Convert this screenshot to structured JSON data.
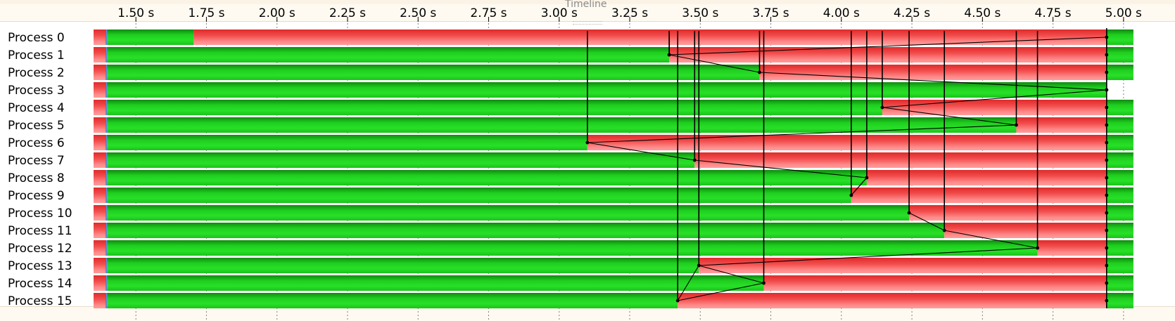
{
  "panel": {
    "title": "Timeline"
  },
  "chart_data": {
    "type": "timeline",
    "x_unit": "s",
    "xlim": [
      1.35,
      5.12
    ],
    "x_ticks": [
      {
        "value": 1.5,
        "label": "1.50 s"
      },
      {
        "value": 1.75,
        "label": "1.75 s"
      },
      {
        "value": 2.0,
        "label": "2.00 s"
      },
      {
        "value": 2.25,
        "label": "2.25 s"
      },
      {
        "value": 2.5,
        "label": "2.50 s"
      },
      {
        "value": 2.75,
        "label": "2.75 s"
      },
      {
        "value": 3.0,
        "label": "3.00 s"
      },
      {
        "value": 3.25,
        "label": "3.25 s"
      },
      {
        "value": 3.5,
        "label": "3.50 s"
      },
      {
        "value": 3.75,
        "label": "3.75 s"
      },
      {
        "value": 4.0,
        "label": "4.00 s"
      },
      {
        "value": 4.25,
        "label": "4.25 s"
      },
      {
        "value": 4.5,
        "label": "4.50 s"
      },
      {
        "value": 4.75,
        "label": "4.75 s"
      },
      {
        "value": 5.0,
        "label": "5.00 s"
      }
    ],
    "colors": {
      "compute": "#1fd21f",
      "wait": "#f06060",
      "arrow": "#000000",
      "grid": "#808080"
    },
    "track_start": 1.35,
    "init_end": 1.395,
    "processes": [
      {
        "label": "Process 0",
        "wait_start": 1.705,
        "end": 5.035
      },
      {
        "label": "Process 1",
        "wait_start": 3.39,
        "end": 5.035
      },
      {
        "label": "Process 2",
        "wait_start": 3.71,
        "end": 5.035
      },
      {
        "label": "Process 3",
        "wait_start": null,
        "end": 4.94
      },
      {
        "label": "Process 4",
        "wait_start": 4.145,
        "end": 5.035
      },
      {
        "label": "Process 5",
        "wait_start": 4.62,
        "end": 5.035
      },
      {
        "label": "Process 6",
        "wait_start": 3.1,
        "end": 5.035
      },
      {
        "label": "Process 7",
        "wait_start": 3.48,
        "end": 5.035
      },
      {
        "label": "Process 8",
        "wait_start": 4.09,
        "end": 5.035
      },
      {
        "label": "Process 9",
        "wait_start": 4.035,
        "end": 5.035
      },
      {
        "label": "Process 10",
        "wait_start": 4.24,
        "end": 5.035
      },
      {
        "label": "Process 11",
        "wait_start": 4.365,
        "end": 5.035
      },
      {
        "label": "Process 12",
        "wait_start": 4.695,
        "end": 5.035
      },
      {
        "label": "Process 13",
        "wait_start": 3.495,
        "end": 5.035
      },
      {
        "label": "Process 14",
        "wait_start": 3.725,
        "end": 5.035
      },
      {
        "label": "Process 15",
        "wait_start": 3.42,
        "end": 5.035
      }
    ],
    "barrier_time": 4.94,
    "barrier_end_time": 5.035,
    "arrows": [
      {
        "from_proc": 6,
        "from_t": 3.1,
        "to_proc": 7,
        "to_t": 3.48,
        "stub_t": 3.1
      },
      {
        "from_proc": 1,
        "from_t": 3.39,
        "to_proc": 2,
        "to_t": 3.71,
        "stub_t": 3.39
      },
      {
        "from_proc": 15,
        "from_t": 3.42,
        "to_proc": 13,
        "to_t": 3.495,
        "stub_t": 3.42
      },
      {
        "from_proc": 7,
        "from_t": 3.48,
        "to_proc": 8,
        "to_t": 4.09,
        "stub_t": 3.48
      },
      {
        "from_proc": 13,
        "from_t": 3.495,
        "to_proc": 14,
        "to_t": 3.725,
        "stub_t": 3.495
      },
      {
        "from_proc": 2,
        "from_t": 3.71,
        "to_proc": 3,
        "to_t": 4.94,
        "stub_t": 3.71
      },
      {
        "from_proc": 14,
        "from_t": 3.725,
        "to_proc": 15,
        "to_t": 3.42,
        "stub_t": 3.725
      },
      {
        "from_proc": 9,
        "from_t": 4.035,
        "to_proc": 8,
        "to_t": 4.09,
        "stub_t": 4.035
      },
      {
        "from_proc": 8,
        "from_t": 4.09,
        "to_proc": 9,
        "to_t": 4.035,
        "stub_t": 4.09
      },
      {
        "from_proc": 4,
        "from_t": 4.145,
        "to_proc": 5,
        "to_t": 4.62,
        "stub_t": 4.145
      },
      {
        "from_proc": 10,
        "from_t": 4.24,
        "to_proc": 11,
        "to_t": 4.365,
        "stub_t": 4.24
      },
      {
        "from_proc": 11,
        "from_t": 4.365,
        "to_proc": 12,
        "to_t": 4.695,
        "stub_t": 4.365
      },
      {
        "from_proc": 5,
        "from_t": 4.62,
        "to_proc": 6,
        "to_t": 3.1,
        "stub_t": 4.62
      },
      {
        "from_proc": 12,
        "from_t": 4.695,
        "to_proc": 13,
        "to_t": 3.495,
        "stub_t": 4.695
      },
      {
        "from_proc": 3,
        "from_t": 4.94,
        "to_proc": 4,
        "to_t": 4.145,
        "stub_t": 4.94
      },
      {
        "from_proc": 1,
        "from_t": 3.39,
        "to_proc": 0,
        "to_t": 4.94,
        "stub_t": 3.39
      }
    ]
  }
}
